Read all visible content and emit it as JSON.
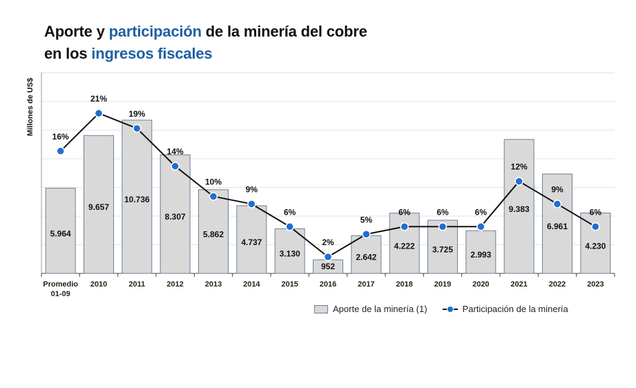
{
  "title": {
    "line1_a": "Aporte y ",
    "line1_hl": "participación",
    "line1_b": " de la minería del cobre",
    "line2_a": "en los ",
    "line2_hl": "ingresos fiscales"
  },
  "colors": {
    "bar_fill": "#d9d9d9",
    "bar_stroke": "#6b7f99",
    "line": "#111111",
    "marker": "#1f6fd1",
    "highlight": "#1f5fa3"
  },
  "chart_data": {
    "type": "bar",
    "ylabel": "Millones de US$",
    "grid": true,
    "legend_position": "bottom-right",
    "categories": [
      [
        "Promedio",
        "01-09"
      ],
      [
        "2010"
      ],
      [
        "2011"
      ],
      [
        "2012"
      ],
      [
        "2013"
      ],
      [
        "2014"
      ],
      [
        "2015"
      ],
      [
        "2016"
      ],
      [
        "2017"
      ],
      [
        "2018"
      ],
      [
        "2019"
      ],
      [
        "2020"
      ],
      [
        "2021"
      ],
      [
        "2022"
      ],
      [
        "2023"
      ]
    ],
    "series": [
      {
        "name": "Aporte de la minería (1)",
        "type": "bar",
        "values": [
          5964,
          9657,
          10736,
          8307,
          5862,
          4737,
          3130,
          952,
          2642,
          4222,
          3725,
          2993,
          9383,
          6961,
          4230
        ],
        "labels": [
          "5.964",
          "9.657",
          "10.736",
          "8.307",
          "5.862",
          "4.737",
          "3.130",
          "952",
          "2.642",
          "4.222",
          "3.725",
          "2.993",
          "9.383",
          "6.961",
          "4.230"
        ]
      },
      {
        "name": "Participación de la minería",
        "type": "line",
        "values": [
          16,
          21,
          19,
          14,
          10,
          9,
          6,
          2,
          5,
          6,
          6,
          6,
          12,
          9,
          6
        ],
        "labels": [
          "16%",
          "21%",
          "19%",
          "14%",
          "10%",
          "9%",
          "6%",
          "2%",
          "5%",
          "6%",
          "6%",
          "6%",
          "12%",
          "9%",
          "6%"
        ]
      }
    ]
  }
}
